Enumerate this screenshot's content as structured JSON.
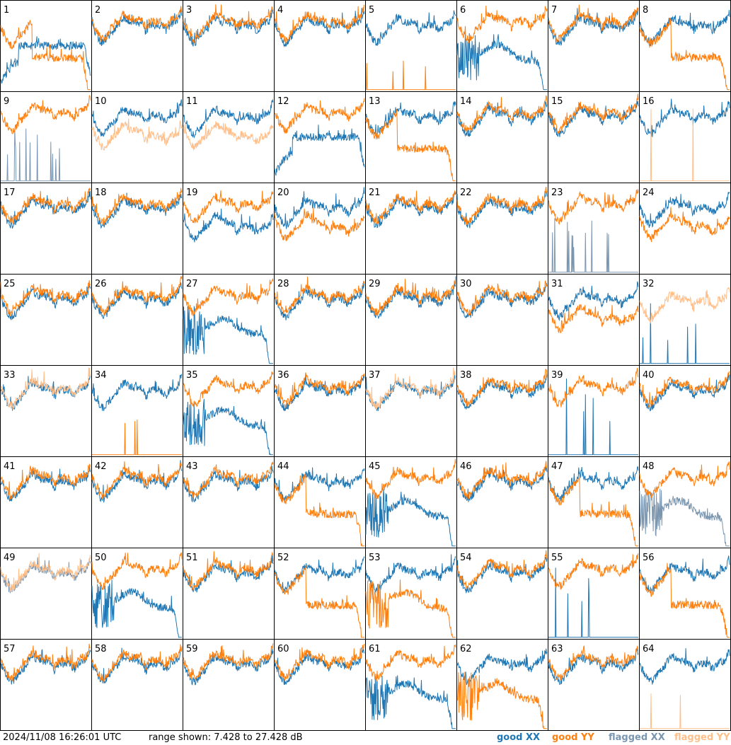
{
  "chart_data": {
    "type": "line",
    "panel_labels": [
      "1",
      "2",
      "3",
      "4",
      "5",
      "6",
      "7",
      "8",
      "9",
      "10",
      "11",
      "12",
      "13",
      "14",
      "15",
      "16",
      "17",
      "18",
      "19",
      "20",
      "21",
      "22",
      "23",
      "24",
      "25",
      "26",
      "27",
      "28",
      "29",
      "30",
      "31",
      "32",
      "33",
      "34",
      "35",
      "36",
      "37",
      "38",
      "39",
      "40",
      "41",
      "42",
      "43",
      "44",
      "45",
      "46",
      "47",
      "48",
      "49",
      "50",
      "51",
      "52",
      "53",
      "54",
      "55",
      "56",
      "57",
      "58",
      "59",
      "60",
      "61",
      "62",
      "63",
      "64"
    ],
    "range_db": [
      7.428,
      27.428
    ],
    "grid_columns": 8,
    "grid_rows": 8,
    "series_colors": {
      "good_xx": "#1f77b4",
      "good_yy": "#ff7f0e",
      "flagged_xx": "#7a96b0",
      "flagged_yy": "#ffbf8a"
    },
    "panels": [
      {
        "p": 1,
        "xx": "A",
        "yy": "B"
      },
      {
        "p": 2,
        "xx": "good",
        "yy": "good"
      },
      {
        "p": 3,
        "xx": "good",
        "yy": "good"
      },
      {
        "p": 4,
        "xx": "good",
        "yy": "good"
      },
      {
        "p": 5,
        "xx": "good",
        "yy": "dead-orange"
      },
      {
        "p": 6,
        "xx": "C",
        "yy": "good-orange"
      },
      {
        "p": 7,
        "xx": "good",
        "yy": "good"
      },
      {
        "p": 8,
        "xx": "good",
        "yy": "B"
      },
      {
        "p": 9,
        "xx": "flagged-spikes",
        "yy": "good-orange"
      },
      {
        "p": 10,
        "xx": "good",
        "yy": "flagged-lower"
      },
      {
        "p": 11,
        "xx": "good",
        "yy": "flagged-lower"
      },
      {
        "p": 12,
        "xx": "A",
        "yy": "good"
      },
      {
        "p": 13,
        "xx": "good",
        "yy": "B"
      },
      {
        "p": 14,
        "xx": "good",
        "yy": "good"
      },
      {
        "p": 15,
        "xx": "good",
        "yy": "good"
      },
      {
        "p": 16,
        "xx": "good",
        "yy": "dead-flagged"
      },
      {
        "p": 17,
        "xx": "good",
        "yy": "good"
      },
      {
        "p": 18,
        "xx": "good",
        "yy": "good"
      },
      {
        "p": 19,
        "xx": "lower",
        "yy": "good"
      },
      {
        "p": 20,
        "xx": "good",
        "yy": "lower"
      },
      {
        "p": 21,
        "xx": "good",
        "yy": "good"
      },
      {
        "p": 22,
        "xx": "good",
        "yy": "good"
      },
      {
        "p": 23,
        "xx": "flagged-spikes",
        "yy": "good-orange"
      },
      {
        "p": 24,
        "xx": "good",
        "yy": "lower"
      },
      {
        "p": 25,
        "xx": "good",
        "yy": "good"
      },
      {
        "p": 26,
        "xx": "good",
        "yy": "good"
      },
      {
        "p": 27,
        "xx": "C",
        "yy": "good-orange"
      },
      {
        "p": 28,
        "xx": "good",
        "yy": "good"
      },
      {
        "p": 29,
        "xx": "good",
        "yy": "good"
      },
      {
        "p": 30,
        "xx": "good",
        "yy": "good"
      },
      {
        "p": 31,
        "xx": "good",
        "yy": "lower"
      },
      {
        "p": 32,
        "xx": "dead",
        "yy": "flagged-only"
      },
      {
        "p": 33,
        "xx": "good",
        "yy": "flagged-good"
      },
      {
        "p": 34,
        "xx": "good",
        "yy": "dead-orange"
      },
      {
        "p": 35,
        "xx": "C",
        "yy": "good"
      },
      {
        "p": 36,
        "xx": "good",
        "yy": "good"
      },
      {
        "p": 37,
        "xx": "good",
        "yy": "flagged-good"
      },
      {
        "p": 38,
        "xx": "good",
        "yy": "good"
      },
      {
        "p": 39,
        "xx": "dead",
        "yy": "good-orange"
      },
      {
        "p": 40,
        "xx": "good",
        "yy": "good"
      },
      {
        "p": 41,
        "xx": "good",
        "yy": "good"
      },
      {
        "p": 42,
        "xx": "good",
        "yy": "good"
      },
      {
        "p": 43,
        "xx": "good",
        "yy": "good"
      },
      {
        "p": 44,
        "xx": "good",
        "yy": "B"
      },
      {
        "p": 45,
        "xx": "C",
        "yy": "good"
      },
      {
        "p": 46,
        "xx": "good",
        "yy": "good"
      },
      {
        "p": 47,
        "xx": "good",
        "yy": "B"
      },
      {
        "p": 48,
        "xx": "flagged-C",
        "yy": "good"
      },
      {
        "p": 49,
        "xx": "flagged-good",
        "yy": "flagged-good"
      },
      {
        "p": 50,
        "xx": "C",
        "yy": "good"
      },
      {
        "p": 51,
        "xx": "good",
        "yy": "good"
      },
      {
        "p": 52,
        "xx": "good",
        "yy": "B"
      },
      {
        "p": 53,
        "xx": "good",
        "yy": "C"
      },
      {
        "p": 54,
        "xx": "good",
        "yy": "good"
      },
      {
        "p": 55,
        "xx": "dead",
        "yy": "good-orange"
      },
      {
        "p": 56,
        "xx": "good",
        "yy": "B"
      },
      {
        "p": 57,
        "xx": "good",
        "yy": "good"
      },
      {
        "p": 58,
        "xx": "good",
        "yy": "good"
      },
      {
        "p": 59,
        "xx": "good",
        "yy": "good"
      },
      {
        "p": 60,
        "xx": "good",
        "yy": "good"
      },
      {
        "p": 61,
        "xx": "C",
        "yy": "good"
      },
      {
        "p": 62,
        "xx": "good",
        "yy": "C"
      },
      {
        "p": 63,
        "xx": "good",
        "yy": "good"
      },
      {
        "p": 64,
        "xx": "good",
        "yy": "dead-flagged"
      }
    ]
  },
  "footer": {
    "timestamp": "2024/11/08 16:26:01 UTC",
    "range_text": "range shown: 7.428 to 27.428 dB",
    "legend": [
      {
        "label": "good XX",
        "color": "#1f77b4"
      },
      {
        "label": "good YY",
        "color": "#ff7f0e"
      },
      {
        "label": "flagged XX",
        "color": "#7a96b0"
      },
      {
        "label": "flagged YY",
        "color": "#ffbf8a"
      }
    ]
  }
}
